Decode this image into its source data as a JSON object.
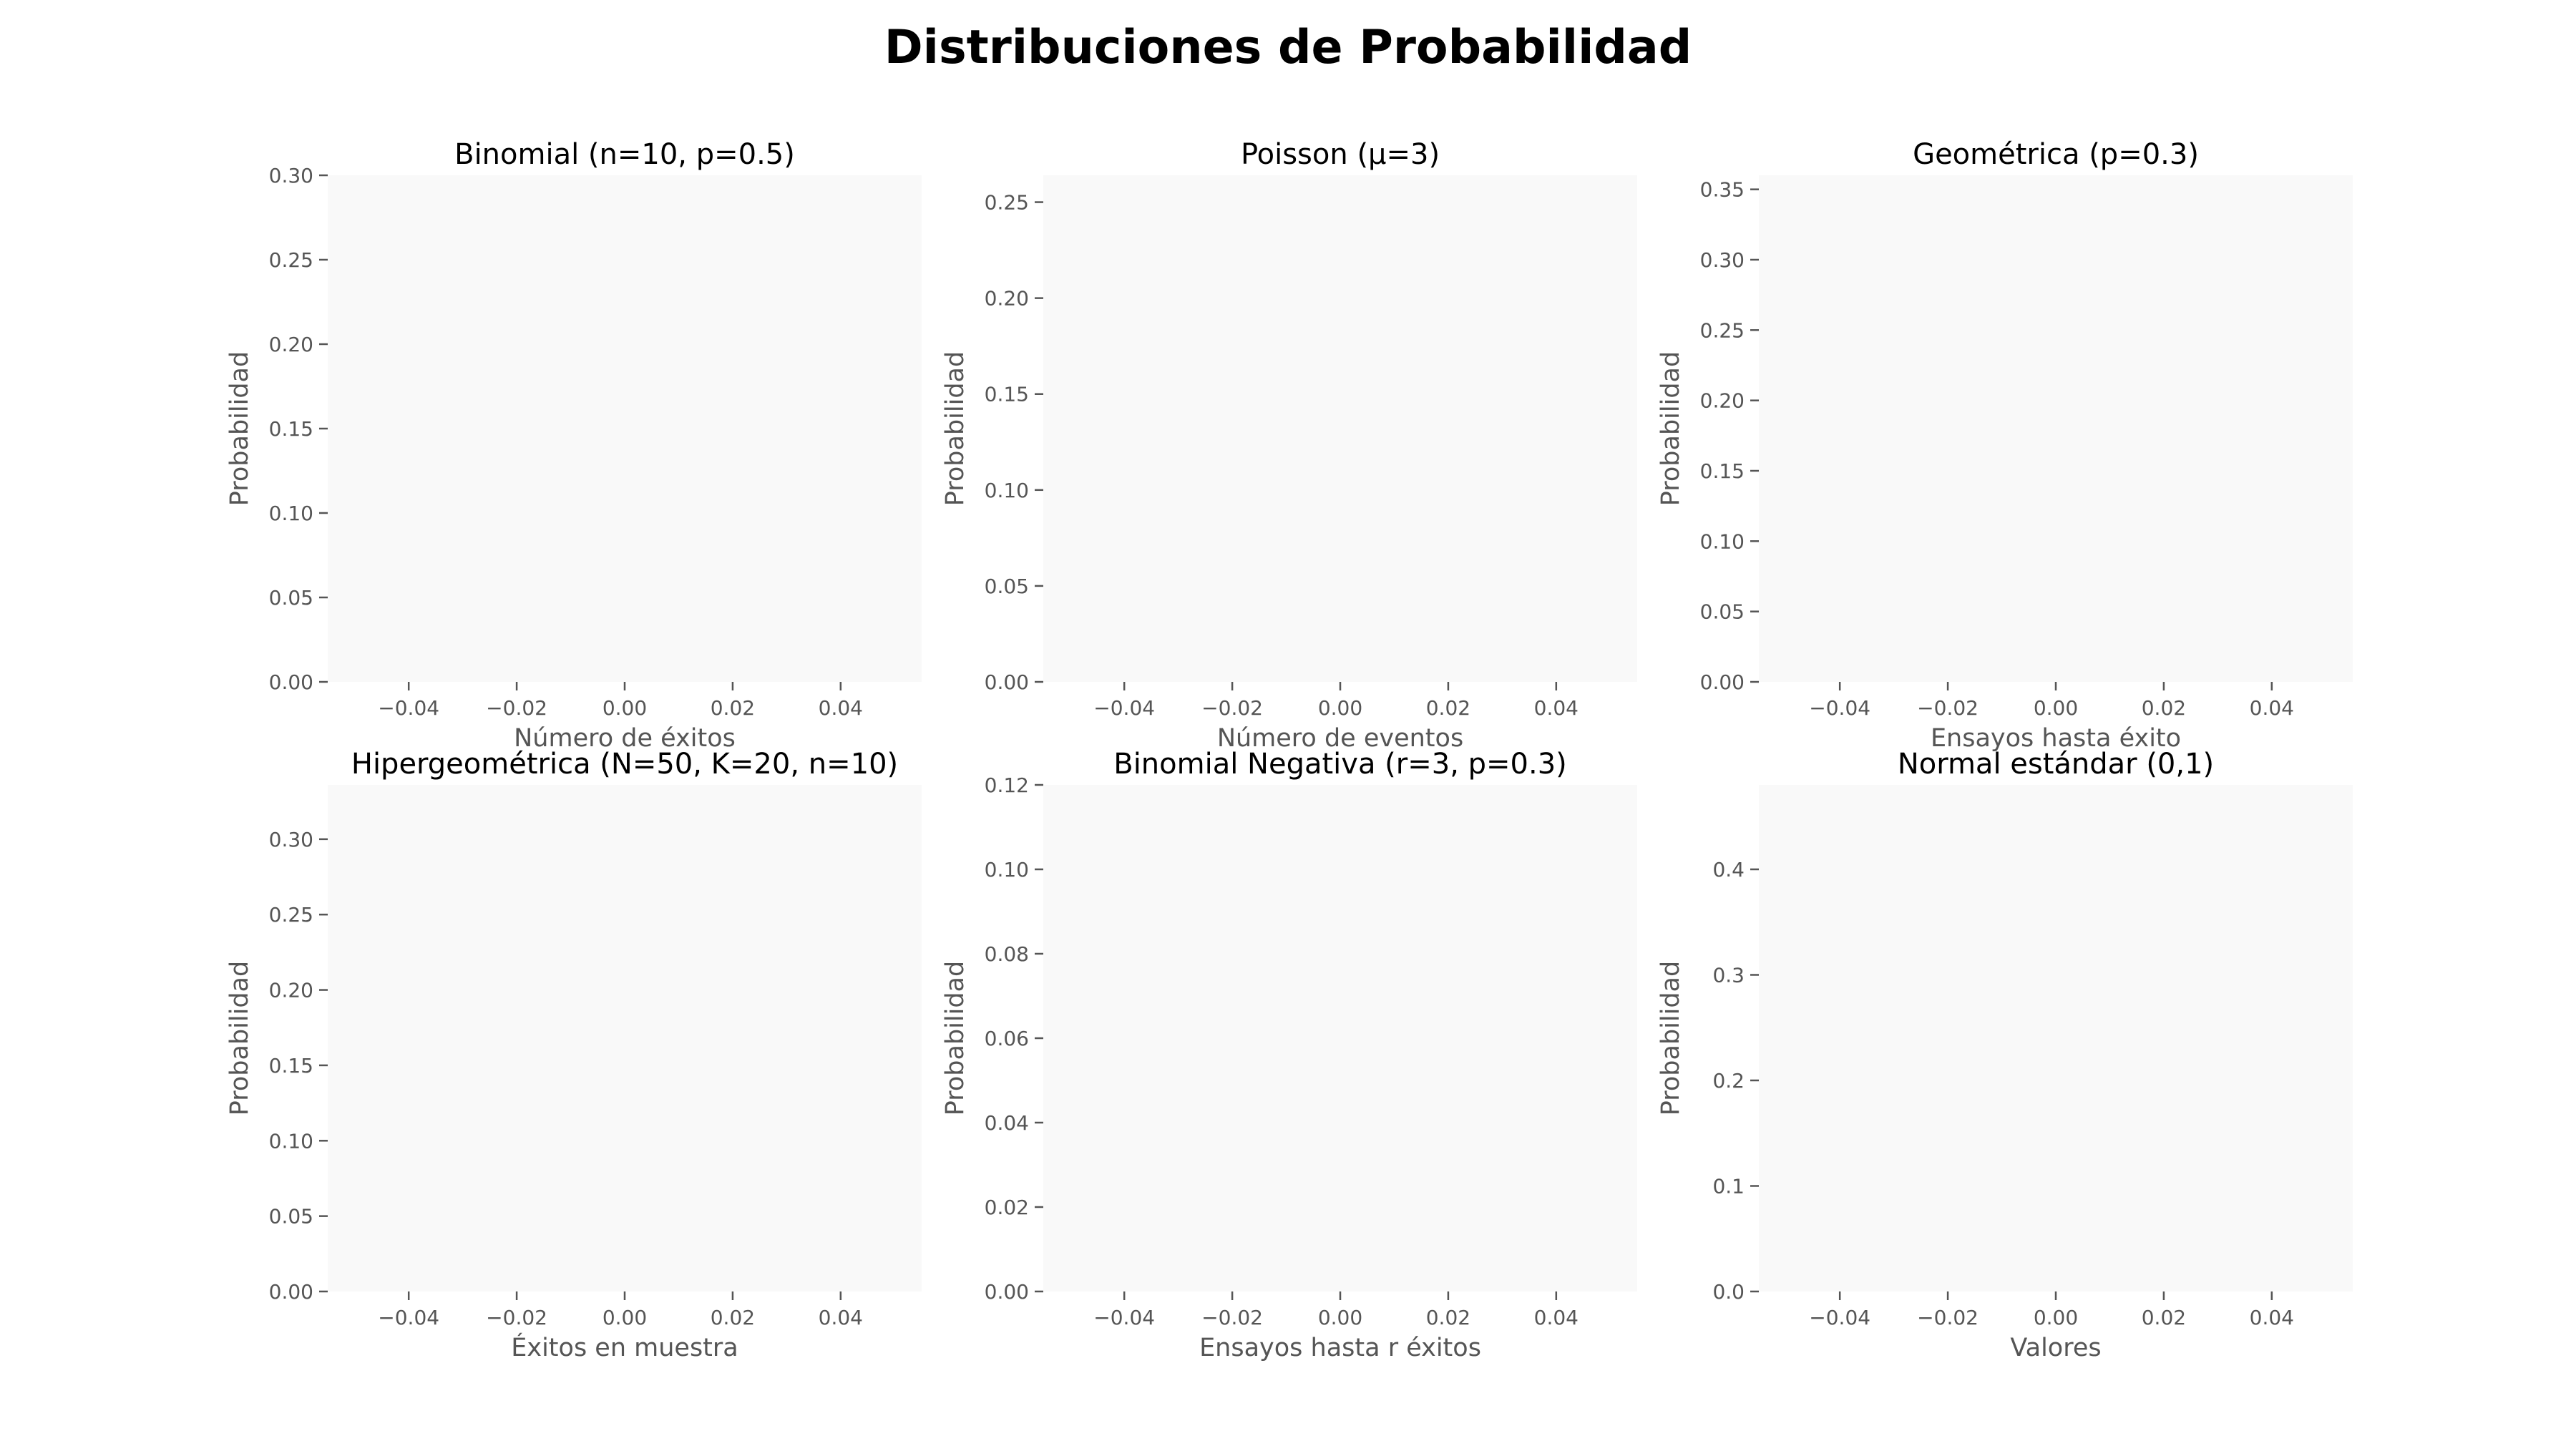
{
  "figure": {
    "title": "Distribuciones de Probabilidad",
    "background": "#ffffff",
    "axes_facecolor": "#f9f9f9",
    "text_color": "#555555"
  },
  "chart_data": [
    {
      "type": "bar",
      "title": "Binomial (n=10, p=0.5)",
      "xlabel": "Número de éxitos",
      "ylabel": "Probabilidad",
      "xlim": [
        -0.055,
        0.055
      ],
      "ylim": [
        0,
        0.3
      ],
      "xticks": [
        -0.04,
        -0.02,
        0.0,
        0.02,
        0.04
      ],
      "xtick_labels": [
        "−0.04",
        "−0.02",
        "0.00",
        "0.02",
        "0.04"
      ],
      "yticks": [
        0,
        0.05,
        0.1,
        0.15,
        0.2,
        0.25,
        0.3
      ],
      "ytick_labels": [
        "0.00",
        "0.05",
        "0.10",
        "0.15",
        "0.20",
        "0.25",
        "0.30"
      ],
      "grid": false,
      "x": [],
      "values": []
    },
    {
      "type": "bar",
      "title": "Poisson (μ=3)",
      "xlabel": "Número de eventos",
      "ylabel": "Probabilidad",
      "xlim": [
        -0.055,
        0.055
      ],
      "ylim": [
        0,
        0.264
      ],
      "xticks": [
        -0.04,
        -0.02,
        0.0,
        0.02,
        0.04
      ],
      "xtick_labels": [
        "−0.04",
        "−0.02",
        "0.00",
        "0.02",
        "0.04"
      ],
      "yticks": [
        0,
        0.05,
        0.1,
        0.15,
        0.2,
        0.25
      ],
      "ytick_labels": [
        "0.00",
        "0.05",
        "0.10",
        "0.15",
        "0.20",
        "0.25"
      ],
      "grid": false,
      "x": [],
      "values": []
    },
    {
      "type": "bar",
      "title": "Geométrica (p=0.3)",
      "xlabel": "Ensayos hasta éxito",
      "ylabel": "Probabilidad",
      "xlim": [
        -0.055,
        0.055
      ],
      "ylim": [
        0,
        0.36
      ],
      "xticks": [
        -0.04,
        -0.02,
        0.0,
        0.02,
        0.04
      ],
      "xtick_labels": [
        "−0.04",
        "−0.02",
        "0.00",
        "0.02",
        "0.04"
      ],
      "yticks": [
        0,
        0.05,
        0.1,
        0.15,
        0.2,
        0.25,
        0.3,
        0.35
      ],
      "ytick_labels": [
        "0.00",
        "0.05",
        "0.10",
        "0.15",
        "0.20",
        "0.25",
        "0.30",
        "0.35"
      ],
      "grid": false,
      "x": [],
      "values": []
    },
    {
      "type": "bar",
      "title": "Hipergeométrica (N=50, K=20, n=10)",
      "xlabel": "Éxitos en muestra",
      "ylabel": "Probabilidad",
      "xlim": [
        -0.055,
        0.055
      ],
      "ylim": [
        0,
        0.336
      ],
      "xticks": [
        -0.04,
        -0.02,
        0.0,
        0.02,
        0.04
      ],
      "xtick_labels": [
        "−0.04",
        "−0.02",
        "0.00",
        "0.02",
        "0.04"
      ],
      "yticks": [
        0,
        0.05,
        0.1,
        0.15,
        0.2,
        0.25,
        0.3
      ],
      "ytick_labels": [
        "0.00",
        "0.05",
        "0.10",
        "0.15",
        "0.20",
        "0.25",
        "0.30"
      ],
      "grid": false,
      "x": [],
      "values": []
    },
    {
      "type": "bar",
      "title": "Binomial Negativa (r=3, p=0.3)",
      "xlabel": "Ensayos hasta r éxitos",
      "ylabel": "Probabilidad",
      "xlim": [
        -0.055,
        0.055
      ],
      "ylim": [
        0,
        0.12
      ],
      "xticks": [
        -0.04,
        -0.02,
        0.0,
        0.02,
        0.04
      ],
      "xtick_labels": [
        "−0.04",
        "−0.02",
        "0.00",
        "0.02",
        "0.04"
      ],
      "yticks": [
        0,
        0.02,
        0.04,
        0.06,
        0.08,
        0.1,
        0.12
      ],
      "ytick_labels": [
        "0.00",
        "0.02",
        "0.04",
        "0.06",
        "0.08",
        "0.10",
        "0.12"
      ],
      "grid": false,
      "x": [],
      "values": []
    },
    {
      "type": "line",
      "title": "Normal estándar (0,1)",
      "xlabel": "Valores",
      "ylabel": "Probabilidad",
      "xlim": [
        -0.055,
        0.055
      ],
      "ylim": [
        0,
        0.48
      ],
      "xticks": [
        -0.04,
        -0.02,
        0.0,
        0.02,
        0.04
      ],
      "xtick_labels": [
        "−0.04",
        "−0.02",
        "0.00",
        "0.02",
        "0.04"
      ],
      "yticks": [
        0,
        0.1,
        0.2,
        0.3,
        0.4
      ],
      "ytick_labels": [
        "0.0",
        "0.1",
        "0.2",
        "0.3",
        "0.4"
      ],
      "grid": false,
      "x": [],
      "values": []
    }
  ]
}
